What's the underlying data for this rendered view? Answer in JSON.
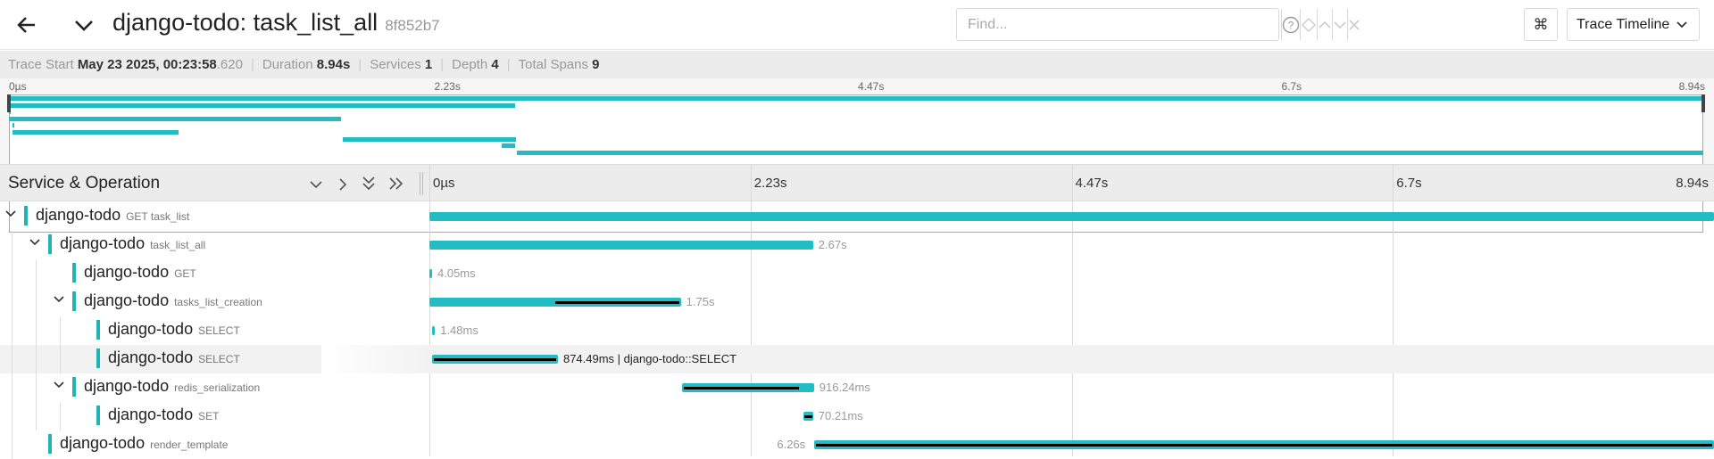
{
  "header": {
    "title": "django-todo: task_list_all",
    "trace_id": "8f852b7",
    "find_placeholder": "Find...",
    "view_select": "Trace Timeline"
  },
  "summary": {
    "trace_start_label": "Trace Start",
    "trace_start_date": "May 23 2025, 00:23:58",
    "trace_start_ms": ".620",
    "duration_label": "Duration",
    "duration": "8.94s",
    "services_label": "Services",
    "services": "1",
    "depth_label": "Depth",
    "depth": "4",
    "spans_label": "Total Spans",
    "spans": "9"
  },
  "ticks": [
    "0µs",
    "2.23s",
    "4.47s",
    "6.7s",
    "8.94s"
  ],
  "timeline": {
    "column_title": "Service & Operation"
  },
  "colors": {
    "accent": "#22bcc4",
    "critical": "#000000"
  },
  "spans": [
    {
      "service": "django-todo",
      "operation": "GET task_list",
      "depth": 0,
      "has_children": true,
      "start": 0.0,
      "duration_s": 8.94,
      "duration_label": ""
    },
    {
      "service": "django-todo",
      "operation": "task_list_all",
      "depth": 1,
      "has_children": true,
      "start": 0.0,
      "duration_s": 2.67,
      "duration_label": "2.67s"
    },
    {
      "service": "django-todo",
      "operation": "GET",
      "depth": 2,
      "has_children": false,
      "start": 0.0,
      "duration_s": 0.00405,
      "duration_label": "4.05ms"
    },
    {
      "service": "django-todo",
      "operation": "tasks_list_creation",
      "depth": 2,
      "has_children": true,
      "start": 0.0,
      "duration_s": 1.75,
      "duration_label": "1.75s"
    },
    {
      "service": "django-todo",
      "operation": "SELECT",
      "depth": 3,
      "has_children": false,
      "start": 0.02,
      "duration_s": 0.00148,
      "duration_label": "1.48ms"
    },
    {
      "service": "django-todo",
      "operation": "SELECT",
      "depth": 3,
      "has_children": false,
      "start": 0.02,
      "duration_s": 0.87449,
      "duration_label": "874.49ms | django-todo::SELECT",
      "highlighted": true
    },
    {
      "service": "django-todo",
      "operation": "redis_serialization",
      "depth": 2,
      "has_children": true,
      "start": 1.76,
      "duration_s": 0.91624,
      "duration_label": "916.24ms"
    },
    {
      "service": "django-todo",
      "operation": "SET",
      "depth": 3,
      "has_children": false,
      "start": 2.6,
      "duration_s": 0.07021,
      "duration_label": "70.21ms"
    },
    {
      "service": "django-todo",
      "operation": "render_template",
      "depth": 1,
      "has_children": false,
      "start": 2.68,
      "duration_s": 6.26,
      "duration_label": "6.26s"
    }
  ]
}
